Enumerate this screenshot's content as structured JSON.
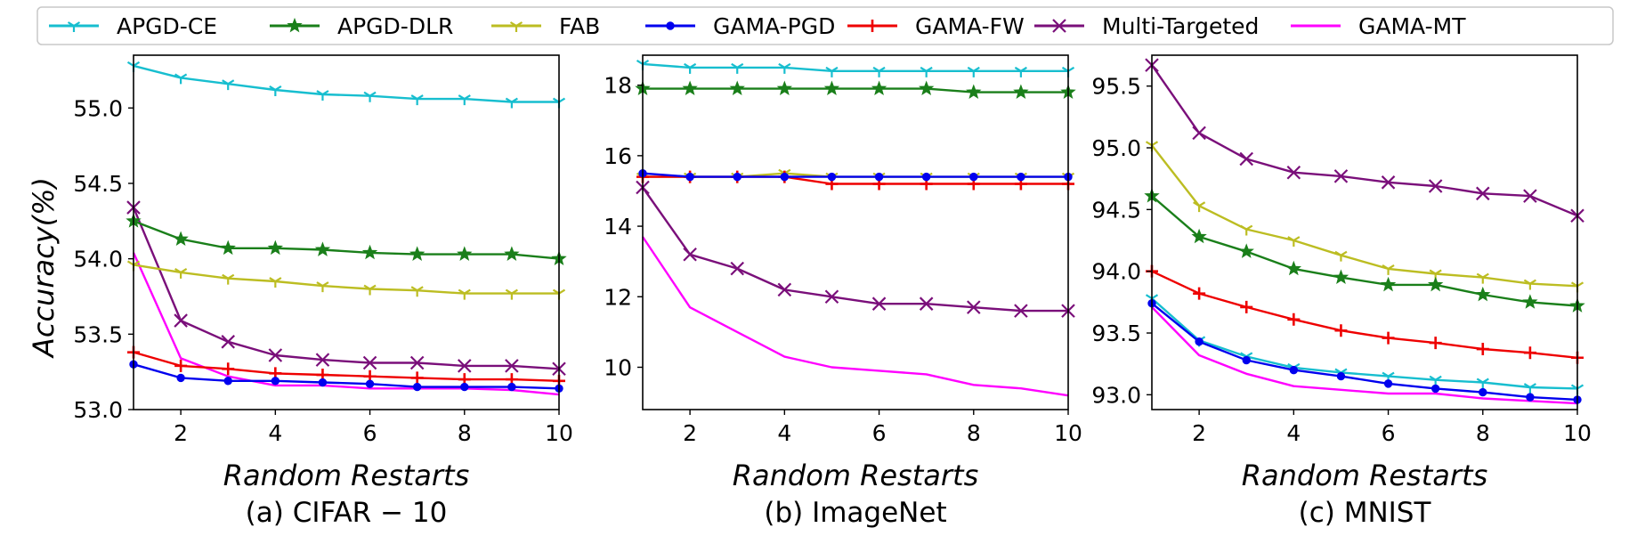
{
  "y_axis_label": "Accuracy(%)",
  "legend": [
    {
      "name": "APGD-CE",
      "color": "#17becf",
      "marker": "tri"
    },
    {
      "name": "APGD-DLR",
      "color": "#1a7f1a",
      "marker": "star"
    },
    {
      "name": "FAB",
      "color": "#bcbd22",
      "marker": "tri"
    },
    {
      "name": "GAMA-PGD",
      "color": "#0000ee",
      "marker": "dot"
    },
    {
      "name": "GAMA-FW",
      "color": "#ee0000",
      "marker": "plus"
    },
    {
      "name": "Multi-Targeted",
      "color": "#7a0f7a",
      "marker": "x"
    },
    {
      "name": "GAMA-MT",
      "color": "#ff00ff",
      "marker": "none"
    }
  ],
  "chart_data": [
    {
      "type": "line",
      "caption": "(a) CIFAR − 10",
      "xlabel": "Random Restarts",
      "ylabel": "Accuracy(%)",
      "xlim": [
        1,
        10
      ],
      "ylim": [
        53.0,
        55.35
      ],
      "xticks": [
        2,
        4,
        6,
        8,
        10
      ],
      "yticks": [
        53.0,
        53.5,
        54.0,
        54.5,
        55.0
      ],
      "ytick_labels": [
        "53.0",
        "53.5",
        "54.0",
        "54.5",
        "55.0"
      ],
      "x": [
        1,
        2,
        3,
        4,
        5,
        6,
        7,
        8,
        9,
        10
      ],
      "series": [
        {
          "name": "APGD-CE",
          "values": [
            55.28,
            55.2,
            55.16,
            55.12,
            55.09,
            55.08,
            55.06,
            55.06,
            55.04,
            55.04
          ]
        },
        {
          "name": "APGD-DLR",
          "values": [
            54.25,
            54.13,
            54.07,
            54.07,
            54.06,
            54.04,
            54.03,
            54.03,
            54.03,
            54.0
          ]
        },
        {
          "name": "FAB",
          "values": [
            53.96,
            53.91,
            53.87,
            53.85,
            53.82,
            53.8,
            53.79,
            53.77,
            53.77,
            53.77
          ]
        },
        {
          "name": "GAMA-PGD",
          "values": [
            53.3,
            53.21,
            53.19,
            53.19,
            53.18,
            53.17,
            53.15,
            53.15,
            53.15,
            53.14
          ]
        },
        {
          "name": "GAMA-FW",
          "values": [
            53.38,
            53.29,
            53.27,
            53.24,
            53.23,
            53.22,
            53.21,
            53.2,
            53.2,
            53.19
          ]
        },
        {
          "name": "Multi-Targeted",
          "values": [
            54.34,
            53.59,
            53.45,
            53.36,
            53.33,
            53.31,
            53.31,
            53.29,
            53.29,
            53.27
          ]
        },
        {
          "name": "GAMA-MT",
          "values": [
            54.04,
            53.34,
            53.22,
            53.16,
            53.16,
            53.14,
            53.14,
            53.14,
            53.13,
            53.1
          ]
        }
      ]
    },
    {
      "type": "line",
      "caption": "(b) ImageNet",
      "xlabel": "Random Restarts",
      "ylabel": "",
      "xlim": [
        1,
        10
      ],
      "ylim": [
        8.8,
        18.85
      ],
      "xticks": [
        2,
        4,
        6,
        8,
        10
      ],
      "yticks": [
        10,
        12,
        14,
        16,
        18
      ],
      "ytick_labels": [
        "10",
        "12",
        "14",
        "16",
        "18"
      ],
      "x": [
        1,
        2,
        3,
        4,
        5,
        6,
        7,
        8,
        9,
        10
      ],
      "series": [
        {
          "name": "APGD-CE",
          "values": [
            18.6,
            18.5,
            18.5,
            18.5,
            18.4,
            18.4,
            18.4,
            18.4,
            18.4,
            18.4
          ]
        },
        {
          "name": "APGD-DLR",
          "values": [
            17.9,
            17.9,
            17.9,
            17.9,
            17.9,
            17.9,
            17.9,
            17.8,
            17.8,
            17.8
          ]
        },
        {
          "name": "FAB",
          "values": [
            15.4,
            15.4,
            15.4,
            15.5,
            15.4,
            15.4,
            15.4,
            15.4,
            15.4,
            15.4
          ]
        },
        {
          "name": "GAMA-PGD",
          "values": [
            15.5,
            15.4,
            15.4,
            15.4,
            15.4,
            15.4,
            15.4,
            15.4,
            15.4,
            15.4
          ]
        },
        {
          "name": "GAMA-FW",
          "values": [
            15.4,
            15.4,
            15.4,
            15.4,
            15.2,
            15.2,
            15.2,
            15.2,
            15.2,
            15.2
          ]
        },
        {
          "name": "Multi-Targeted",
          "values": [
            15.1,
            13.2,
            12.8,
            12.2,
            12.0,
            11.8,
            11.8,
            11.7,
            11.6,
            11.6
          ]
        },
        {
          "name": "GAMA-MT",
          "values": [
            13.7,
            11.7,
            11.0,
            10.3,
            10.0,
            9.9,
            9.8,
            9.5,
            9.4,
            9.2
          ]
        }
      ]
    },
    {
      "type": "line",
      "caption": "(c) MNIST",
      "xlabel": "Random Restarts",
      "ylabel": "",
      "xlim": [
        1,
        10
      ],
      "ylim": [
        92.88,
        95.75
      ],
      "xticks": [
        2,
        4,
        6,
        8,
        10
      ],
      "yticks": [
        93.0,
        93.5,
        94.0,
        94.5,
        95.0,
        95.5
      ],
      "ytick_labels": [
        "93.0",
        "93.5",
        "94.0",
        "94.5",
        "95.0",
        "95.5"
      ],
      "x": [
        1,
        2,
        3,
        4,
        5,
        6,
        7,
        8,
        9,
        10
      ],
      "series": [
        {
          "name": "APGD-CE",
          "values": [
            93.78,
            93.44,
            93.31,
            93.22,
            93.18,
            93.15,
            93.12,
            93.1,
            93.06,
            93.05
          ]
        },
        {
          "name": "APGD-DLR",
          "values": [
            94.61,
            94.28,
            94.16,
            94.02,
            93.95,
            93.89,
            93.89,
            93.81,
            93.75,
            93.72
          ]
        },
        {
          "name": "FAB",
          "values": [
            95.02,
            94.53,
            94.34,
            94.25,
            94.13,
            94.02,
            93.98,
            93.95,
            93.9,
            93.88
          ]
        },
        {
          "name": "GAMA-PGD",
          "values": [
            93.74,
            93.43,
            93.28,
            93.2,
            93.15,
            93.09,
            93.05,
            93.02,
            92.98,
            92.96
          ]
        },
        {
          "name": "GAMA-FW",
          "values": [
            94.0,
            93.82,
            93.71,
            93.61,
            93.52,
            93.46,
            93.42,
            93.37,
            93.34,
            93.3
          ]
        },
        {
          "name": "Multi-Targeted",
          "values": [
            95.67,
            95.12,
            94.91,
            94.8,
            94.77,
            94.72,
            94.69,
            94.63,
            94.61,
            94.45
          ]
        },
        {
          "name": "GAMA-MT",
          "values": [
            93.71,
            93.32,
            93.17,
            93.07,
            93.04,
            93.01,
            93.01,
            92.97,
            92.95,
            92.93
          ]
        }
      ]
    }
  ]
}
